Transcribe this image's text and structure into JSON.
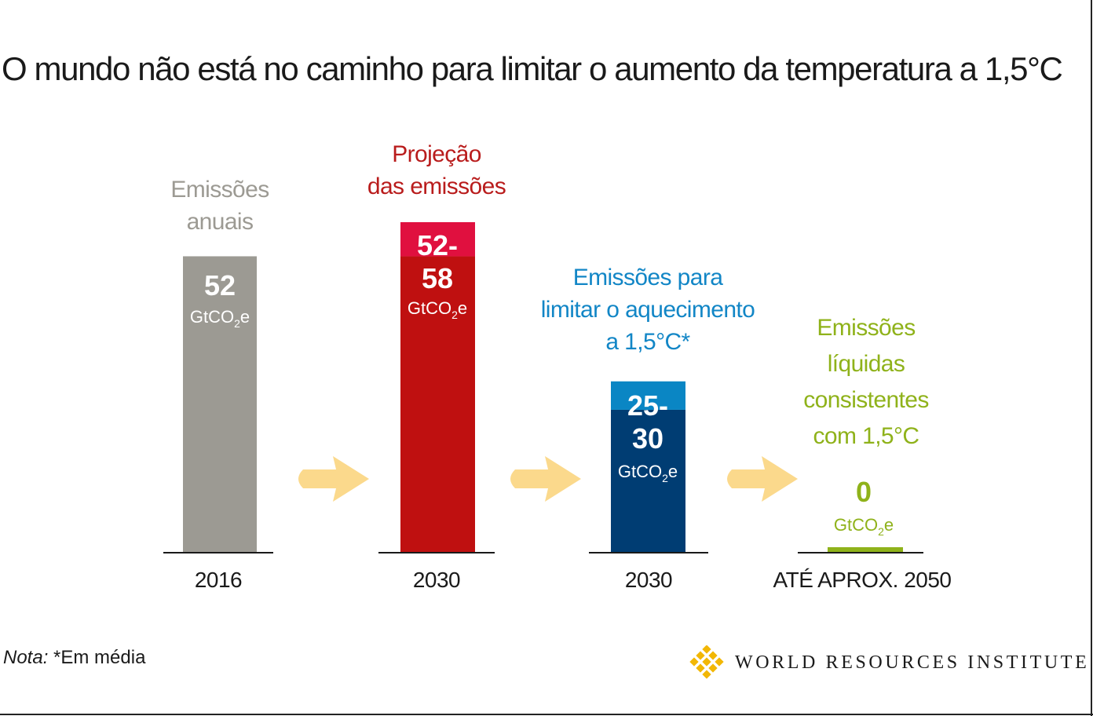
{
  "title": "O mundo não está no caminho para limitar o aumento da temperatura a 1,5°C",
  "chart_data": {
    "type": "bar",
    "categories": [
      "2016",
      "2030",
      "2030",
      "ATÉ APROX. 2050"
    ],
    "series_labels": [
      [
        "Emissões",
        "anuais"
      ],
      [
        "Projeção",
        "das emissões"
      ],
      [
        "Emissões para",
        "limitar o aquecimento",
        "a 1,5°C*"
      ],
      [
        "Emissões",
        "líquidas",
        "consistentes",
        "com 1,5°C"
      ]
    ],
    "values": [
      52,
      [
        52,
        58
      ],
      [
        25,
        30
      ],
      0
    ],
    "value_labels": [
      "52",
      "52-\n58",
      "25-\n30",
      "0"
    ],
    "unit": "GtCO2e",
    "unit_main": "GtCO",
    "unit_sub": "2",
    "unit_tail": "e",
    "ylim": [
      0,
      58
    ],
    "colors": {
      "annual": "#9c9a93",
      "projection": "#bf1010",
      "projection_range": "#e0103f",
      "limit": "#003d73",
      "limit_range": "#0a86c4",
      "net_zero": "#8fb21a",
      "arrow": "#fbd98c"
    }
  },
  "note": {
    "label": "Nota:",
    "text": "*Em média"
  },
  "logo": {
    "text": "WORLD RESOURCES INSTITUTE",
    "icon": "wri-lattice-icon"
  }
}
